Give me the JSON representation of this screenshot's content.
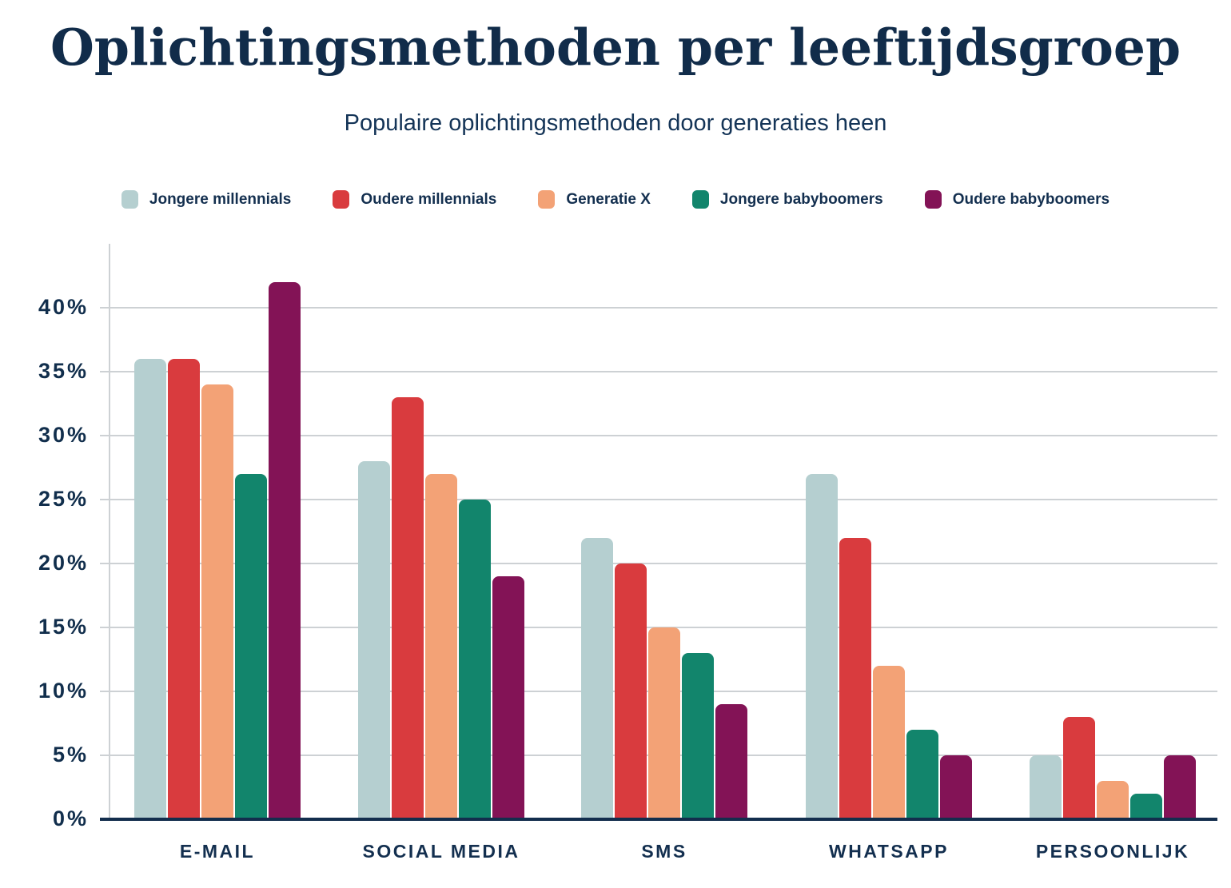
{
  "title": "Oplichtingsmethoden per leeftijdsgroep",
  "subtitle": "Populaire oplichtingsmethoden door generaties heen",
  "colors": {
    "background": "#ffffff",
    "title_text": "#112c4a",
    "label_text": "#132f4f",
    "gridline": "#cdd1d4",
    "axis_line": "#132e4d"
  },
  "chart_data": {
    "type": "bar",
    "categories": [
      "E-MAIL",
      "SOCIAL MEDIA",
      "SMS",
      "WHATSAPP",
      "PERSOONLIJK"
    ],
    "series": [
      {
        "name": "Jongere millennials",
        "color": "#b5cfd0",
        "values": [
          36,
          28,
          22,
          27,
          5
        ]
      },
      {
        "name": "Oudere millennials",
        "color": "#d93b3e",
        "values": [
          36,
          33,
          20,
          22,
          8
        ]
      },
      {
        "name": "Generatie X",
        "color": "#f3a276",
        "values": [
          34,
          27,
          15,
          12,
          3
        ]
      },
      {
        "name": "Jongere babyboomers",
        "color": "#12856c",
        "values": [
          27,
          25,
          13,
          7,
          2
        ]
      },
      {
        "name": "Oudere babyboomers",
        "color": "#831356",
        "values": [
          42,
          19,
          9,
          5,
          5
        ]
      }
    ],
    "ytick_labels": [
      "0%",
      "5%",
      "10%",
      "15%",
      "20%",
      "25%",
      "30%",
      "35%",
      "40%"
    ],
    "ytick_step": 5,
    "ytick_max": 40,
    "ylim": [
      0,
      45
    ],
    "grid": true,
    "legend_position": "top",
    "xlabel": "",
    "ylabel": ""
  }
}
